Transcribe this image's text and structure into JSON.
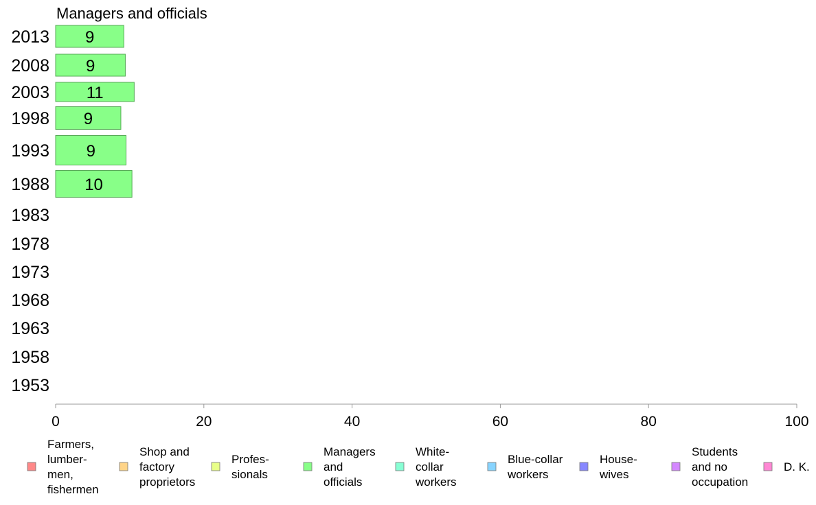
{
  "chart_data": {
    "type": "bar",
    "orientation": "horizontal",
    "title": "Managers and officials",
    "categories": [
      "2013",
      "2008",
      "2003",
      "1998",
      "1993",
      "1988",
      "1983",
      "1978",
      "1973",
      "1968",
      "1963",
      "1958",
      "1953"
    ],
    "series": [
      {
        "name": "Managers and officials",
        "color": "#88ff88",
        "values": [
          9.2,
          9.4,
          10.6,
          8.8,
          9.5,
          10.3,
          null,
          null,
          null,
          null,
          null,
          null,
          null
        ],
        "labels": [
          "9",
          "9",
          "11",
          "9",
          "9",
          "10",
          "",
          "",
          "",
          "",
          "",
          "",
          ""
        ]
      }
    ],
    "xlim": [
      0,
      100
    ],
    "xticks": [
      "0",
      "20",
      "40",
      "60",
      "80",
      "100"
    ],
    "legend": {
      "placement": "bottom",
      "items": [
        {
          "lines": [
            "Farmers,",
            "lumber-",
            "men,",
            "fishermen"
          ],
          "color": "#ff8888"
        },
        {
          "lines": [
            "Shop and",
            "factory",
            "proprietors"
          ],
          "color": "#ffd488"
        },
        {
          "lines": [
            "Profes-",
            "sionals"
          ],
          "color": "#e8ff88"
        },
        {
          "lines": [
            "Managers",
            "and",
            "officials"
          ],
          "color": "#88ff88"
        },
        {
          "lines": [
            "White-",
            "collar",
            "workers"
          ],
          "color": "#88ffd4"
        },
        {
          "lines": [
            "Blue-collar",
            "workers"
          ],
          "color": "#88d4ff"
        },
        {
          "lines": [
            "House-",
            "wives"
          ],
          "color": "#8888ff"
        },
        {
          "lines": [
            "Students",
            "and no",
            "occupation"
          ],
          "color": "#d488ff"
        },
        {
          "lines": [
            "D. K."
          ],
          "color": "#ff88d4"
        }
      ]
    }
  }
}
